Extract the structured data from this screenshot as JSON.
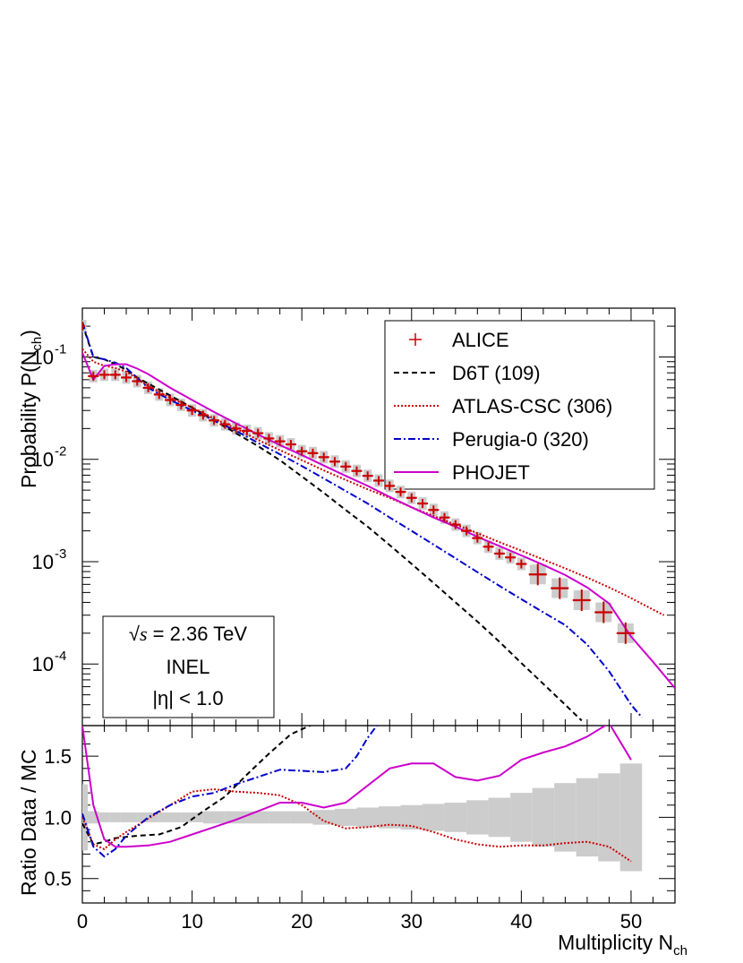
{
  "chart_data": [
    {
      "panel": "top",
      "type": "line",
      "ylabel": "Probability P(N",
      "ylabel_sub": "ch",
      "ylabel_close": ")",
      "yscale": "log",
      "xlim": [
        0,
        54
      ],
      "ylim": [
        2.5e-05,
        0.3
      ],
      "x_ticks": [
        0,
        10,
        20,
        30,
        40,
        50
      ],
      "y_ticks": [
        {
          "value": 0.1,
          "label": "10",
          "exp": "-1"
        },
        {
          "value": 0.01,
          "label": "10",
          "exp": "-2"
        },
        {
          "value": 0.001,
          "label": "10",
          "exp": "-3"
        },
        {
          "value": 0.0001,
          "label": "10",
          "exp": "-4"
        }
      ],
      "legend": {
        "position": "top-right",
        "entries": [
          {
            "label": "ALICE",
            "color": "#cc0000",
            "style": "marker"
          },
          {
            "label": "D6T (109)",
            "color": "#000000",
            "style": "dashed"
          },
          {
            "label": "ATLAS-CSC (306)",
            "color": "#cc0000",
            "style": "dotted"
          },
          {
            "label": "Perugia-0 (320)",
            "color": "#0000cc",
            "style": "dashdot"
          },
          {
            "label": "PHOJET",
            "color": "#cc00cc",
            "style": "solid"
          }
        ]
      },
      "annotation": {
        "lines": [
          "√s = 2.36 TeV",
          "INEL",
          "|η| < 1.0"
        ],
        "sqrt_symbol": "√",
        "s_symbol": "s",
        "energy_text": " = 2.36 TeV"
      },
      "alice": {
        "x": [
          0,
          1,
          2,
          3,
          4,
          5,
          6,
          7,
          8,
          9,
          10,
          11,
          12,
          13,
          14,
          15,
          16,
          17,
          18,
          19,
          20,
          21,
          22,
          23,
          24,
          25,
          26,
          27,
          28,
          29,
          30,
          31,
          32,
          33,
          34,
          35,
          36,
          37,
          38,
          39,
          40,
          41.5,
          43.5,
          45.5,
          47.5,
          49.5
        ],
        "y": [
          0.2,
          0.065,
          0.067,
          0.067,
          0.063,
          0.058,
          0.05,
          0.043,
          0.038,
          0.034,
          0.03,
          0.027,
          0.024,
          0.022,
          0.02,
          0.019,
          0.018,
          0.016,
          0.015,
          0.014,
          0.012,
          0.0115,
          0.0105,
          0.0095,
          0.0085,
          0.0077,
          0.0069,
          0.0062,
          0.0055,
          0.0048,
          0.0042,
          0.0037,
          0.0032,
          0.0027,
          0.0023,
          0.002,
          0.0017,
          0.0014,
          0.0012,
          0.0011,
          0.00095,
          0.00075,
          0.00055,
          0.00042,
          0.00032,
          0.0002
        ]
      },
      "series": [
        {
          "name": "D6T (109)",
          "color": "#000000",
          "dash": "6,4",
          "x": [
            0,
            1,
            2,
            3,
            4,
            5,
            6,
            8,
            10,
            12,
            14,
            16,
            18,
            20,
            22,
            24,
            26,
            28,
            30,
            32,
            34,
            36,
            38,
            40,
            42,
            44,
            45.5
          ],
          "y": [
            0.21,
            0.1,
            0.095,
            0.085,
            0.075,
            0.063,
            0.055,
            0.042,
            0.032,
            0.024,
            0.018,
            0.0135,
            0.0098,
            0.0068,
            0.0047,
            0.0032,
            0.0022,
            0.00145,
            0.00095,
            0.00062,
            0.0004,
            0.00026,
            0.000165,
            0.000102,
            6.4e-05,
            4e-05,
            2.8e-05
          ]
        },
        {
          "name": "ATLAS-CSC (306)",
          "color": "#cc0000",
          "dash": "2,2",
          "x": [
            0,
            1,
            2,
            3,
            4,
            6,
            8,
            10,
            12,
            14,
            16,
            18,
            20,
            22,
            24,
            26,
            28,
            30,
            32,
            34,
            36,
            38,
            40,
            42,
            44,
            46,
            48,
            50,
            52,
            53
          ],
          "y": [
            0.12,
            0.09,
            0.082,
            0.078,
            0.072,
            0.052,
            0.04,
            0.032,
            0.025,
            0.02,
            0.0155,
            0.0123,
            0.0098,
            0.0078,
            0.0063,
            0.0051,
            0.0042,
            0.0034,
            0.0028,
            0.0023,
            0.0019,
            0.00155,
            0.00128,
            0.00105,
            0.00086,
            0.0007,
            0.00056,
            0.00044,
            0.00034,
            0.0003
          ]
        },
        {
          "name": "Perugia-0 (320)",
          "color": "#0000cc",
          "dash": "8,3,2,3",
          "x": [
            0,
            1,
            2,
            3,
            4,
            6,
            8,
            10,
            12,
            14,
            16,
            18,
            20,
            22,
            24,
            26,
            28,
            30,
            32,
            34,
            36,
            38,
            40,
            42,
            44,
            46,
            48,
            50,
            51
          ],
          "y": [
            0.22,
            0.1,
            0.095,
            0.088,
            0.078,
            0.05,
            0.038,
            0.03,
            0.024,
            0.019,
            0.0145,
            0.0112,
            0.0086,
            0.0065,
            0.0049,
            0.0037,
            0.0027,
            0.002,
            0.00147,
            0.00108,
            0.00079,
            0.00058,
            0.00043,
            0.00032,
            0.00024,
            0.000155,
            8.5e-05,
            4e-05,
            3e-05
          ]
        },
        {
          "name": "PHOJET",
          "color": "#cc00cc",
          "dash": "",
          "x": [
            0,
            1,
            2,
            3,
            4,
            5,
            6,
            8,
            10,
            12,
            14,
            16,
            18,
            20,
            22,
            24,
            26,
            28,
            30,
            32,
            34,
            36,
            38,
            40,
            42,
            44,
            46,
            48,
            50,
            52,
            54
          ],
          "y": [
            0.11,
            0.06,
            0.082,
            0.085,
            0.085,
            0.077,
            0.068,
            0.05,
            0.038,
            0.029,
            0.0225,
            0.0175,
            0.0138,
            0.011,
            0.0087,
            0.0069,
            0.0055,
            0.0043,
            0.0034,
            0.0027,
            0.0022,
            0.00175,
            0.00142,
            0.00115,
            0.00093,
            0.00074,
            0.00056,
            0.00039,
            0.000185,
            0.000105,
            5.8e-05
          ]
        }
      ]
    },
    {
      "panel": "bottom",
      "type": "line",
      "ylabel": "Ratio Data / MC",
      "xlabel": "Multiplicity N",
      "xlabel_sub": "ch",
      "xlim": [
        0,
        54
      ],
      "ylim": [
        0.3,
        1.75
      ],
      "x_ticks": [
        0,
        10,
        20,
        30,
        40,
        50
      ],
      "y_ticks": [
        0.5,
        1.0,
        1.5
      ],
      "y_tick_labels": [
        "0.5",
        "1.0",
        "1.5"
      ],
      "band": {
        "x": [
          0,
          1,
          2,
          3,
          4,
          6,
          8,
          10,
          12,
          14,
          16,
          18,
          20,
          22,
          24,
          26,
          28,
          30,
          32,
          34,
          36,
          38,
          40,
          42,
          44,
          46,
          48,
          50
        ],
        "halfwidth": [
          0.27,
          0.05,
          0.04,
          0.04,
          0.04,
          0.04,
          0.04,
          0.04,
          0.05,
          0.05,
          0.05,
          0.05,
          0.05,
          0.06,
          0.07,
          0.08,
          0.09,
          0.1,
          0.11,
          0.12,
          0.14,
          0.16,
          0.2,
          0.24,
          0.28,
          0.32,
          0.36,
          0.44
        ]
      },
      "series": [
        {
          "name": "D6T (109)",
          "color": "#000000",
          "dash": "6,4",
          "x": [
            0,
            1,
            2,
            3,
            5,
            7,
            9,
            11,
            13,
            15,
            17,
            19,
            21
          ],
          "y": [
            0.95,
            0.78,
            0.8,
            0.83,
            0.85,
            0.86,
            0.92,
            1.05,
            1.17,
            1.35,
            1.52,
            1.68,
            1.76
          ]
        },
        {
          "name": "ATLAS-CSC (306)",
          "color": "#cc0000",
          "dash": "2,2",
          "x": [
            0,
            1,
            2,
            3,
            4,
            6,
            8,
            10,
            12,
            14,
            16,
            18,
            20,
            22,
            24,
            26,
            28,
            30,
            32,
            34,
            36,
            38,
            40,
            42,
            44,
            46,
            48,
            50
          ],
          "y": [
            1.0,
            0.78,
            0.74,
            0.82,
            0.88,
            0.99,
            1.1,
            1.21,
            1.23,
            1.21,
            1.2,
            1.18,
            1.1,
            0.97,
            0.91,
            0.92,
            0.94,
            0.93,
            0.88,
            0.82,
            0.78,
            0.76,
            0.77,
            0.77,
            0.79,
            0.8,
            0.76,
            0.64
          ]
        },
        {
          "name": "Perugia-0 (320)",
          "color": "#0000cc",
          "dash": "8,3,2,3",
          "x": [
            0,
            1,
            2,
            3,
            4,
            6,
            8,
            10,
            12,
            14,
            16,
            18,
            20,
            22,
            24,
            25,
            26,
            27
          ],
          "y": [
            1.03,
            0.76,
            0.68,
            0.74,
            0.85,
            1.0,
            1.1,
            1.17,
            1.2,
            1.27,
            1.33,
            1.39,
            1.38,
            1.37,
            1.4,
            1.5,
            1.65,
            1.77
          ]
        },
        {
          "name": "PHOJET",
          "color": "#cc00cc",
          "dash": "",
          "x": [
            0,
            1,
            2,
            3,
            4,
            6,
            8,
            10,
            12,
            14,
            16,
            18,
            20,
            22,
            24,
            26,
            28,
            30,
            32,
            34,
            36,
            38,
            40,
            42,
            44,
            46,
            48,
            50
          ],
          "y": [
            1.75,
            1.1,
            0.82,
            0.76,
            0.76,
            0.77,
            0.8,
            0.86,
            0.92,
            0.98,
            1.05,
            1.12,
            1.12,
            1.08,
            1.12,
            1.26,
            1.4,
            1.44,
            1.44,
            1.33,
            1.3,
            1.34,
            1.47,
            1.53,
            1.58,
            1.66,
            1.77,
            1.47
          ]
        }
      ]
    }
  ]
}
